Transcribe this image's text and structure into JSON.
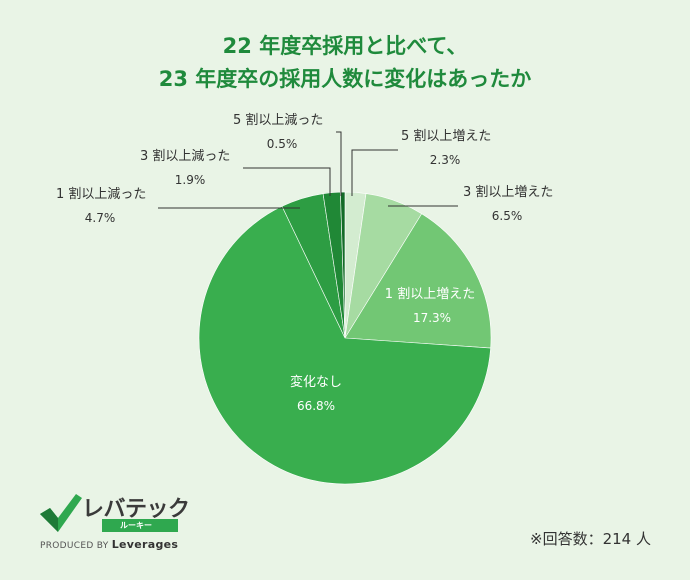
{
  "title_lines": [
    "22 年度卒採用と比べて、",
    "23 年度卒の採用人数に変化はあったか"
  ],
  "note": "※回答数：214 人",
  "logo": {
    "name": "レバテック",
    "sub": "ルーキー",
    "produced_by": "PRODUCED BY",
    "company": "Leverages"
  },
  "chart_data": {
    "type": "pie",
    "title": "22 年度卒採用と比べて、 23 年度卒の採用人数に変化はあったか",
    "start": "12 o'clock, clockwise",
    "slices": [
      {
        "label": "5 割以上増えた",
        "value": 2.3,
        "display": "2.3%",
        "color": "#d3ecd0"
      },
      {
        "label": "3 割以上増えた",
        "value": 6.5,
        "display": "6.5%",
        "color": "#a6dba2"
      },
      {
        "label": "1 割以上増えた",
        "value": 17.3,
        "display": "17.3%",
        "color": "#72c774"
      },
      {
        "label": "変化なし",
        "value": 66.8,
        "display": "66.8%",
        "color": "#39ae4e"
      },
      {
        "label": "1 割以上減った",
        "value": 4.7,
        "display": "4.7%",
        "color": "#2d9d43"
      },
      {
        "label": "3 割以上減った",
        "value": 1.9,
        "display": "1.9%",
        "color": "#208836"
      },
      {
        "label": "5 割以上減った",
        "value": 0.5,
        "display": "0.5%",
        "color": "#136b27"
      }
    ],
    "total_responses": 214
  }
}
